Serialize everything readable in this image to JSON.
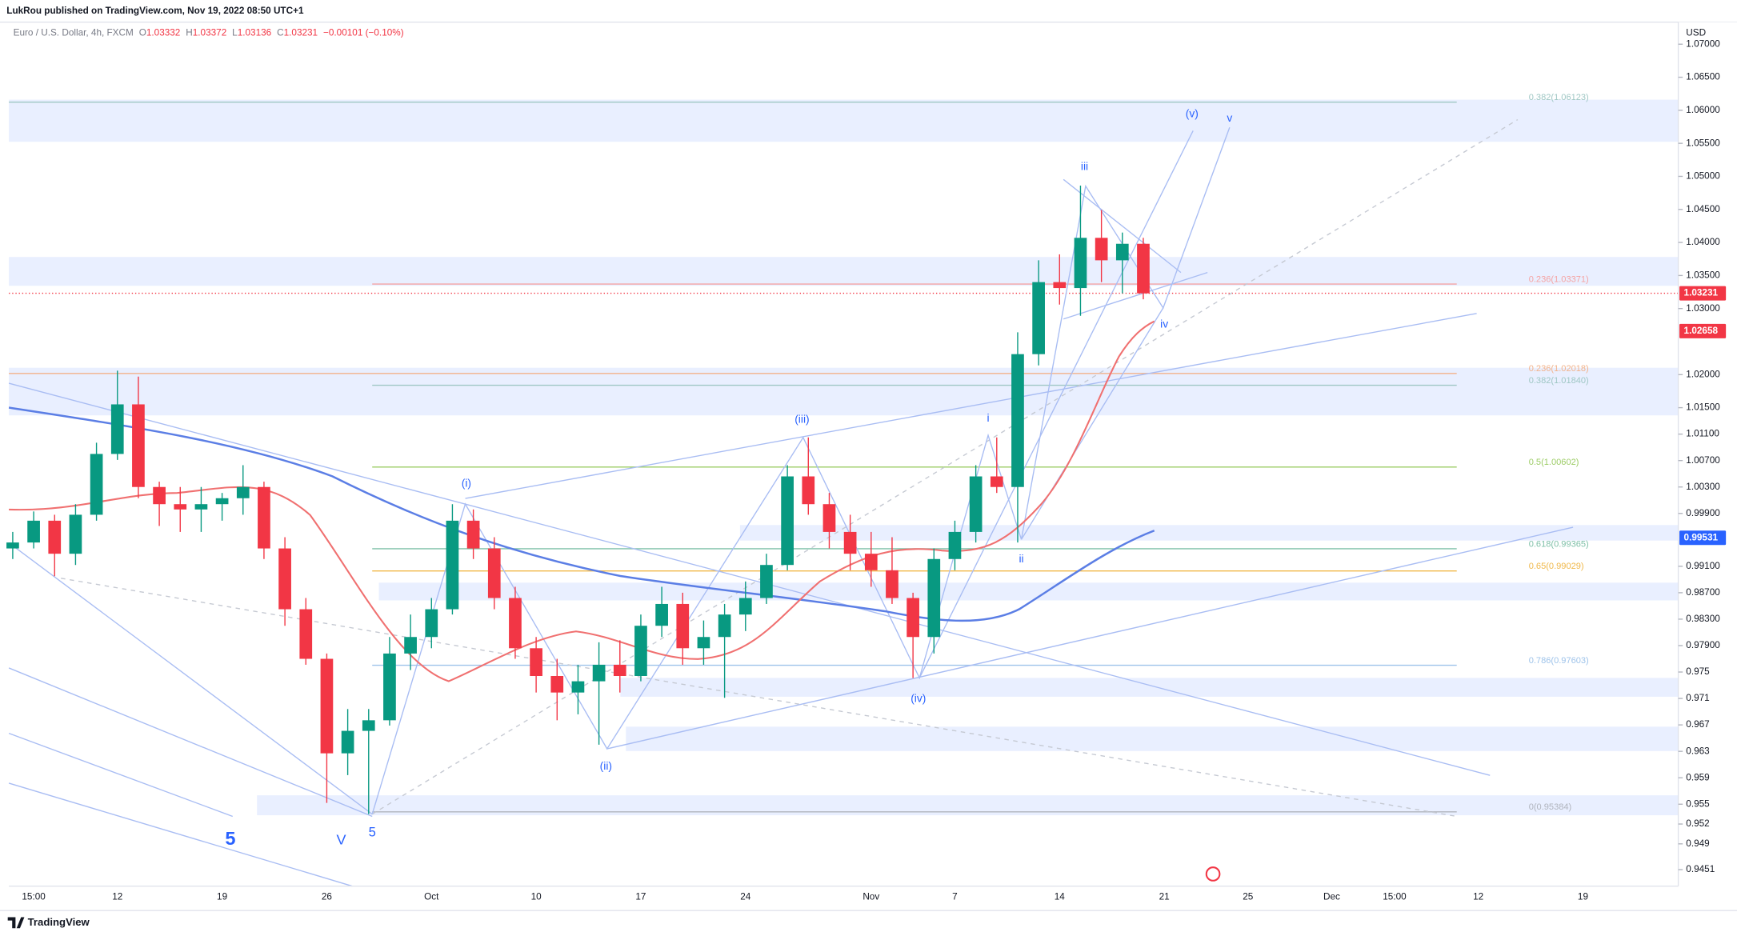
{
  "header": {
    "publisher": "LukRou published on TradingView.com, Nov 19, 2022 08:50 UTC+1"
  },
  "footer": {
    "brand": "TradingView"
  },
  "chart_data": {
    "type": "candlestick",
    "title": "Euro / U.S. Dollar, 4h, FXCM",
    "ohlc": [
      {
        "label": "O",
        "value": 1.03332
      },
      {
        "label": "H",
        "value": 1.03372
      },
      {
        "label": "L",
        "value": 1.03136
      },
      {
        "label": "C",
        "value": 1.03231
      }
    ],
    "change": "−0.00101 (−0.10%)",
    "currency": "USD",
    "up_color": "#089981",
    "down_color": "#f23645",
    "categories": [
      null,
      "15:00",
      null,
      null,
      null,
      "12",
      null,
      null,
      null,
      null,
      "19",
      null,
      null,
      null,
      null,
      "26",
      null,
      null,
      null,
      null,
      "Oct",
      null,
      null,
      null,
      null,
      "10",
      null,
      null,
      null,
      null,
      "17",
      null,
      null,
      null,
      null,
      "24",
      null,
      null,
      null,
      null,
      null,
      "Nov",
      null,
      null,
      null,
      "7",
      null,
      null,
      null,
      null,
      "14",
      null,
      null,
      null,
      null,
      "21",
      null,
      null,
      null,
      "25",
      null,
      null,
      null,
      "Dec",
      null,
      null,
      "15:00",
      null,
      null,
      null,
      "12",
      null,
      null,
      null,
      null,
      "19",
      null,
      null,
      null,
      null
    ],
    "open": [
      0.9937,
      0.9946,
      0.9979,
      0.9929,
      0.9988,
      1.008,
      1.0155,
      1.003,
      1.0004,
      0.9996,
      1.0004,
      1.0013,
      1.003,
      0.9937,
      0.9845,
      0.977,
      0.9627,
      0.9661,
      0.9677,
      0.9778,
      0.9803,
      0.9845,
      0.9979,
      0.9937,
      0.9862,
      0.9786,
      0.9744,
      0.9719,
      0.9736,
      0.9761,
      0.9744,
      0.982,
      0.9853,
      0.9786,
      0.9803,
      0.9837,
      0.9862,
      0.9912,
      1.0046,
      1.0004,
      0.9962,
      0.9929,
      0.9904,
      0.9862,
      0.9803,
      0.9921,
      0.9962,
      1.0046,
      1.003,
      1.0231,
      1.034,
      1.0331,
      1.0407,
      1.0373,
      1.0398,
      null,
      null,
      null,
      null,
      null,
      null,
      null,
      null,
      null,
      null,
      null,
      null,
      null,
      null,
      null,
      null,
      null,
      null,
      null,
      null,
      null,
      null,
      null,
      null,
      null
    ],
    "high": [
      0.9962,
      0.9993,
      0.9988,
      1.0004,
      1.0097,
      1.0206,
      1.0197,
      1.0038,
      1.003,
      1.003,
      1.0021,
      1.0063,
      1.0038,
      0.9954,
      0.9862,
      0.9778,
      0.9694,
      0.9694,
      0.9803,
      0.9837,
      0.9862,
      1.0004,
      0.9996,
      0.9954,
      0.9879,
      0.9803,
      0.977,
      0.9761,
      0.9795,
      0.9798,
      0.9837,
      0.9879,
      0.987,
      0.9828,
      0.9853,
      0.9887,
      0.9929,
      1.0063,
      1.0105,
      1.0021,
      0.9988,
      0.9962,
      0.9954,
      0.987,
      0.9937,
      0.9979,
      1.0063,
      1.0105,
      1.0264,
      1.0373,
      1.0382,
      1.0486,
      1.0449,
      1.0415,
      1.0407,
      null,
      null,
      null,
      null,
      null,
      null,
      null,
      null,
      null,
      null,
      null,
      null,
      null,
      null,
      null,
      null,
      null,
      null,
      null,
      null,
      null,
      null,
      null,
      null,
      null
    ],
    "low": [
      0.9921,
      0.9937,
      0.9895,
      0.9912,
      0.9979,
      1.0071,
      1.0013,
      0.9971,
      0.9962,
      0.9962,
      0.9979,
      0.9988,
      0.9921,
      0.982,
      0.9761,
      0.9552,
      0.9594,
      0.9535,
      0.9669,
      0.9753,
      0.9786,
      0.9837,
      0.9921,
      0.9845,
      0.977,
      0.9719,
      0.9677,
      0.9686,
      0.964,
      0.9719,
      0.9736,
      0.9803,
      0.9761,
      0.9761,
      0.9711,
      0.9812,
      0.9853,
      0.9904,
      0.9988,
      0.9937,
      0.9904,
      0.9879,
      0.9853,
      0.9741,
      0.9778,
      0.9904,
      0.9946,
      1.0021,
      0.9946,
      1.0214,
      1.0306,
      1.0289,
      1.034,
      1.0323,
      1.0314,
      null,
      null,
      null,
      null,
      null,
      null,
      null,
      null,
      null,
      null,
      null,
      null,
      null,
      null,
      null,
      null,
      null,
      null,
      null,
      null,
      null,
      null,
      null,
      null,
      null
    ],
    "close": [
      0.9946,
      0.9979,
      0.9929,
      0.9988,
      1.008,
      1.0155,
      1.003,
      1.0004,
      0.9996,
      1.0004,
      1.0013,
      1.003,
      0.9937,
      0.9845,
      0.977,
      0.9627,
      0.9661,
      0.9677,
      0.9778,
      0.9803,
      0.9845,
      0.9979,
      0.9937,
      0.9862,
      0.9786,
      0.9744,
      0.9719,
      0.9736,
      0.9761,
      0.9744,
      0.982,
      0.9853,
      0.9786,
      0.9803,
      0.9837,
      0.9862,
      0.9912,
      1.0046,
      1.0004,
      0.9962,
      0.9929,
      0.9904,
      0.9862,
      0.9803,
      0.9921,
      0.9962,
      1.0046,
      1.003,
      1.0231,
      1.034,
      1.0331,
      1.0407,
      1.0373,
      1.0398,
      1.0323,
      null,
      null,
      null,
      null,
      null,
      null,
      null,
      null,
      null,
      null,
      null,
      null,
      null,
      null,
      null,
      null,
      null,
      null,
      null,
      null,
      null,
      null,
      null,
      null,
      null
    ],
    "ylim": [
      0.9426,
      1.073
    ],
    "yticks": [
      {
        "value": 1.07,
        "label": "1.07000"
      },
      {
        "value": 1.065,
        "label": "1.06500"
      },
      {
        "value": 1.06,
        "label": "1.06000"
      },
      {
        "value": 1.055,
        "label": "1.05500"
      },
      {
        "value": 1.05,
        "label": "1.05000"
      },
      {
        "value": 1.045,
        "label": "1.04500"
      },
      {
        "value": 1.04,
        "label": "1.04000"
      },
      {
        "value": 1.035,
        "label": "1.03500"
      },
      {
        "value": 1.03,
        "label": "1.03000"
      },
      {
        "value": 1.02,
        "label": "1.02000"
      },
      {
        "value": 1.015,
        "label": "1.01500"
      },
      {
        "value": 1.011,
        "label": "1.01100"
      },
      {
        "value": 1.007,
        "label": "1.00700"
      },
      {
        "value": 1.003,
        "label": "1.00300"
      },
      {
        "value": 0.999,
        "label": "0.99900"
      },
      {
        "value": 0.991,
        "label": "0.99100"
      },
      {
        "value": 0.987,
        "label": "0.98700"
      },
      {
        "value": 0.983,
        "label": "0.98300"
      },
      {
        "value": 0.979,
        "label": "0.97900"
      },
      0.975,
      0.971,
      0.967,
      0.963,
      0.959,
      0.955,
      0.952,
      0.949,
      0.9451
    ],
    "price_labels": [
      {
        "label": "1.03231",
        "value": 1.03231,
        "color": "#f23645"
      },
      {
        "label": "1.02658",
        "value": 1.02658,
        "color": "#f23645"
      },
      {
        "label": "0.99531",
        "value": 0.99531,
        "color": "#2962ff"
      }
    ],
    "fib_levels": [
      {
        "label": "0.382(1.06123)",
        "value": 1.06123,
        "color": "#9fc7c4"
      },
      {
        "label": "0.236(1.03371)",
        "value": 1.03371,
        "color": "#f5a3a3"
      },
      {
        "label": "0.236(1.02018)",
        "value": 1.02018,
        "color": "#f2b28a"
      },
      {
        "label": "0.382(1.01840)",
        "value": 1.0184,
        "color": "#9fc7c4"
      },
      {
        "label": "0.5(1.00602)",
        "value": 1.00602,
        "color": "#9ccc65"
      },
      {
        "label": "0.618(0.99365)",
        "value": 0.99365,
        "color": "#7fc0a8"
      },
      {
        "label": "0.65(0.99029)",
        "value": 0.99029,
        "color": "#f0b84a"
      },
      {
        "label": "0.786(0.97603)",
        "value": 0.97603,
        "color": "#9ec3ea"
      },
      {
        "label": "0(0.95384)",
        "value": 0.95384,
        "color": "#b0b4bd"
      }
    ],
    "annotations": [
      "(i)",
      "(ii)",
      "(iii)",
      "(iv)",
      "(v)",
      "i",
      "ii",
      "iii",
      "iv",
      "v",
      "5",
      "V",
      "5"
    ]
  }
}
